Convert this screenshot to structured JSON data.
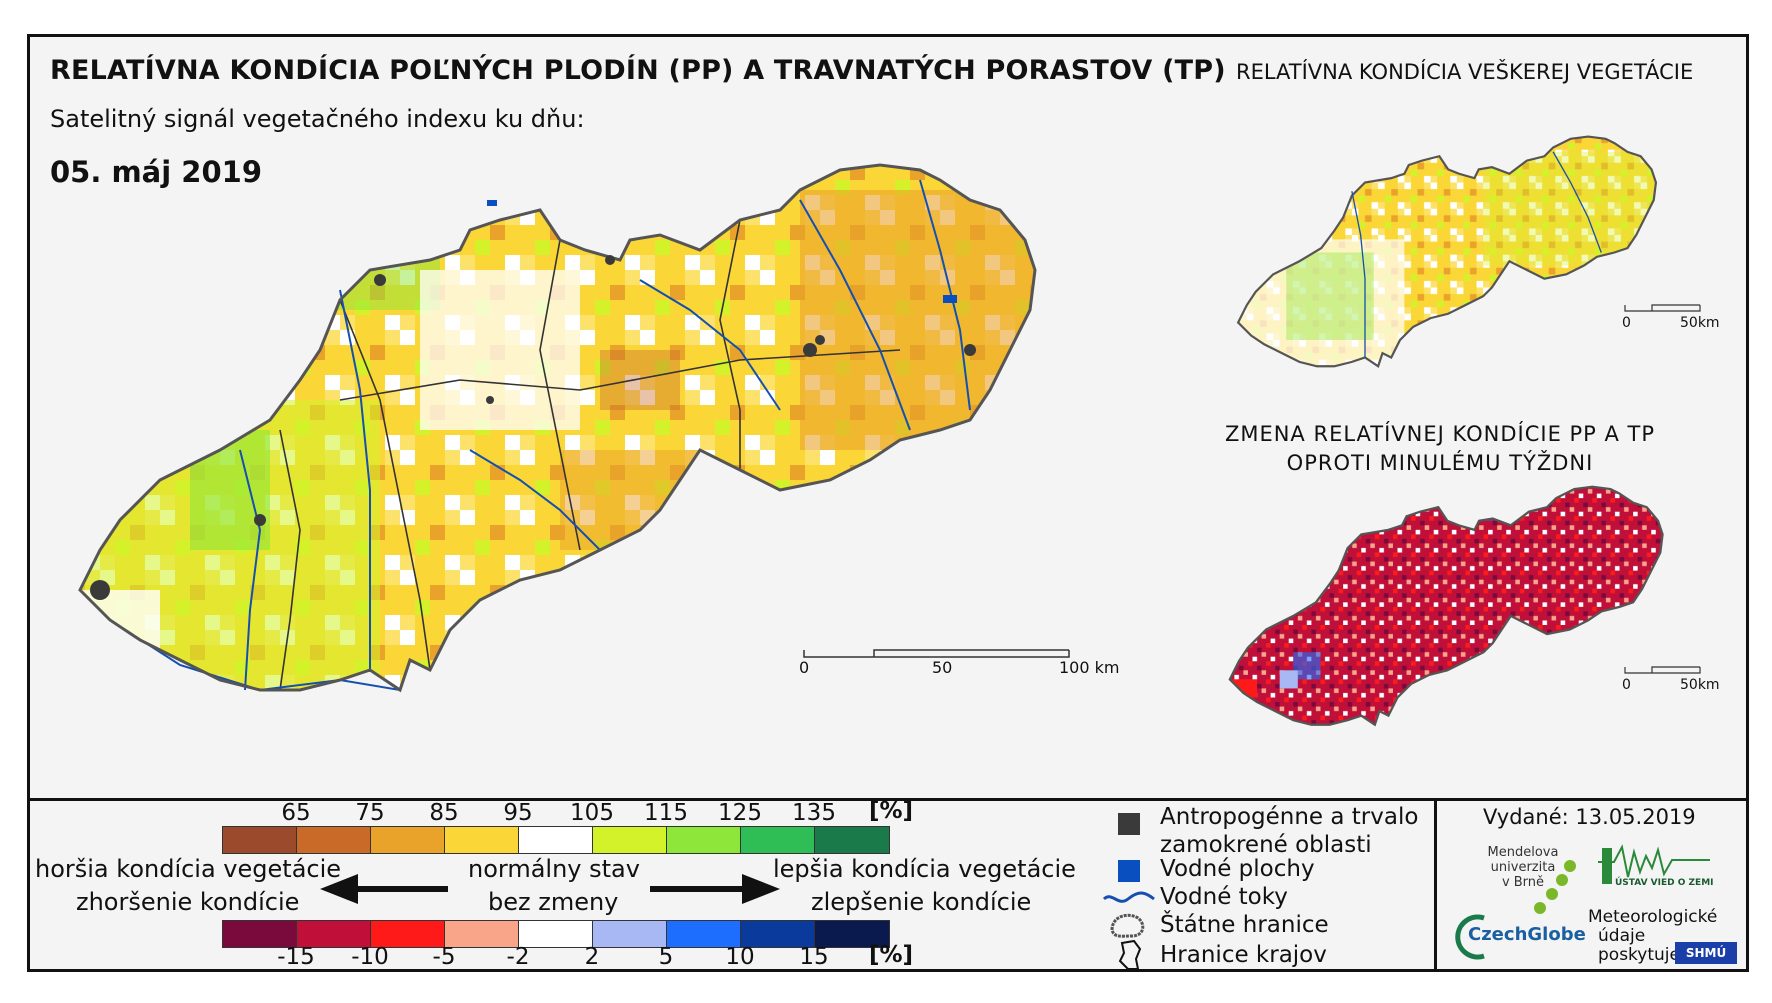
{
  "header": {
    "title": "RELATÍVNA KONDÍCIA POĽNÝCH PLODÍN (PP) A TRAVNATÝCH PORASTOV (TP)",
    "subtitle": "Satelitný signál vegetačného indexu ku dňu:",
    "date": "05. máj 2019",
    "inset_title": "RELATÍVNA KONDÍCIA VEŠKEREJ VEGETÁCIE",
    "change_title_line1": "ZMENA RELATÍVNEJ KONDÍCIE PP A TP",
    "change_title_line2": "OPROTI MINULÉMU TÝŽDNI"
  },
  "main_scale": {
    "labels": [
      "0",
      "50",
      "100 km"
    ]
  },
  "inset_scale": {
    "labels": [
      "0",
      "50km"
    ]
  },
  "change_scale": {
    "labels": [
      "0",
      "50km"
    ]
  },
  "condition_legend": {
    "ticks": [
      "65",
      "75",
      "85",
      "95",
      "105",
      "115",
      "125",
      "135"
    ],
    "unit": "[%]",
    "colors": [
      "#9c4a2c",
      "#c96a28",
      "#e9a22a",
      "#fad737",
      "#ffffff",
      "#d4f22a",
      "#8ee63a",
      "#2fbd55",
      "#1a7a4a"
    ]
  },
  "change_legend": {
    "ticks": [
      "-15",
      "-10",
      "-5",
      "-2",
      "2",
      "5",
      "10",
      "15"
    ],
    "unit": "[%]",
    "colors": [
      "#7a0a3c",
      "#c0103a",
      "#ff1a1a",
      "#f9a58a",
      "#ffffff",
      "#a8b8f5",
      "#1d6dff",
      "#0a3a9c",
      "#0a1a4e"
    ]
  },
  "arrows": {
    "left_top": "horšia kondícia vegetácie",
    "left_bottom": "zhoršenie kondície",
    "center_top": "normálny stav",
    "center_bottom": "bez zmeny",
    "right_top": "lepšia kondícia vegetácie",
    "right_bottom": "zlepšenie kondície"
  },
  "map_legend": {
    "anthropogenic_line1": "Antropogénne a trvalo",
    "anthropogenic_line2": "zamokrené oblasti",
    "water_bodies": "Vodné plochy",
    "rivers": "Vodné toky",
    "state_border": "Štátne hranice",
    "region_border": "Hranice krajov",
    "colors": {
      "anthropogenic": "#3a3a3a",
      "water": "#0a4fc0",
      "river": "#1550b0"
    }
  },
  "issued": {
    "label": "Vydané:",
    "date": "13.05.2019"
  },
  "logos": {
    "mendel_line1": "Mendelova",
    "mendel_line2": "univerzita",
    "mendel_line3": "v Brně",
    "czechglobe": "CzechGlobe",
    "uvgz": "ÚSTAV VIED O ZEMI",
    "meteo_line1": "Meteorologické",
    "meteo_line2": "údaje",
    "meteo_line3": "poskytuje:",
    "shmu": "SHMÚ"
  }
}
